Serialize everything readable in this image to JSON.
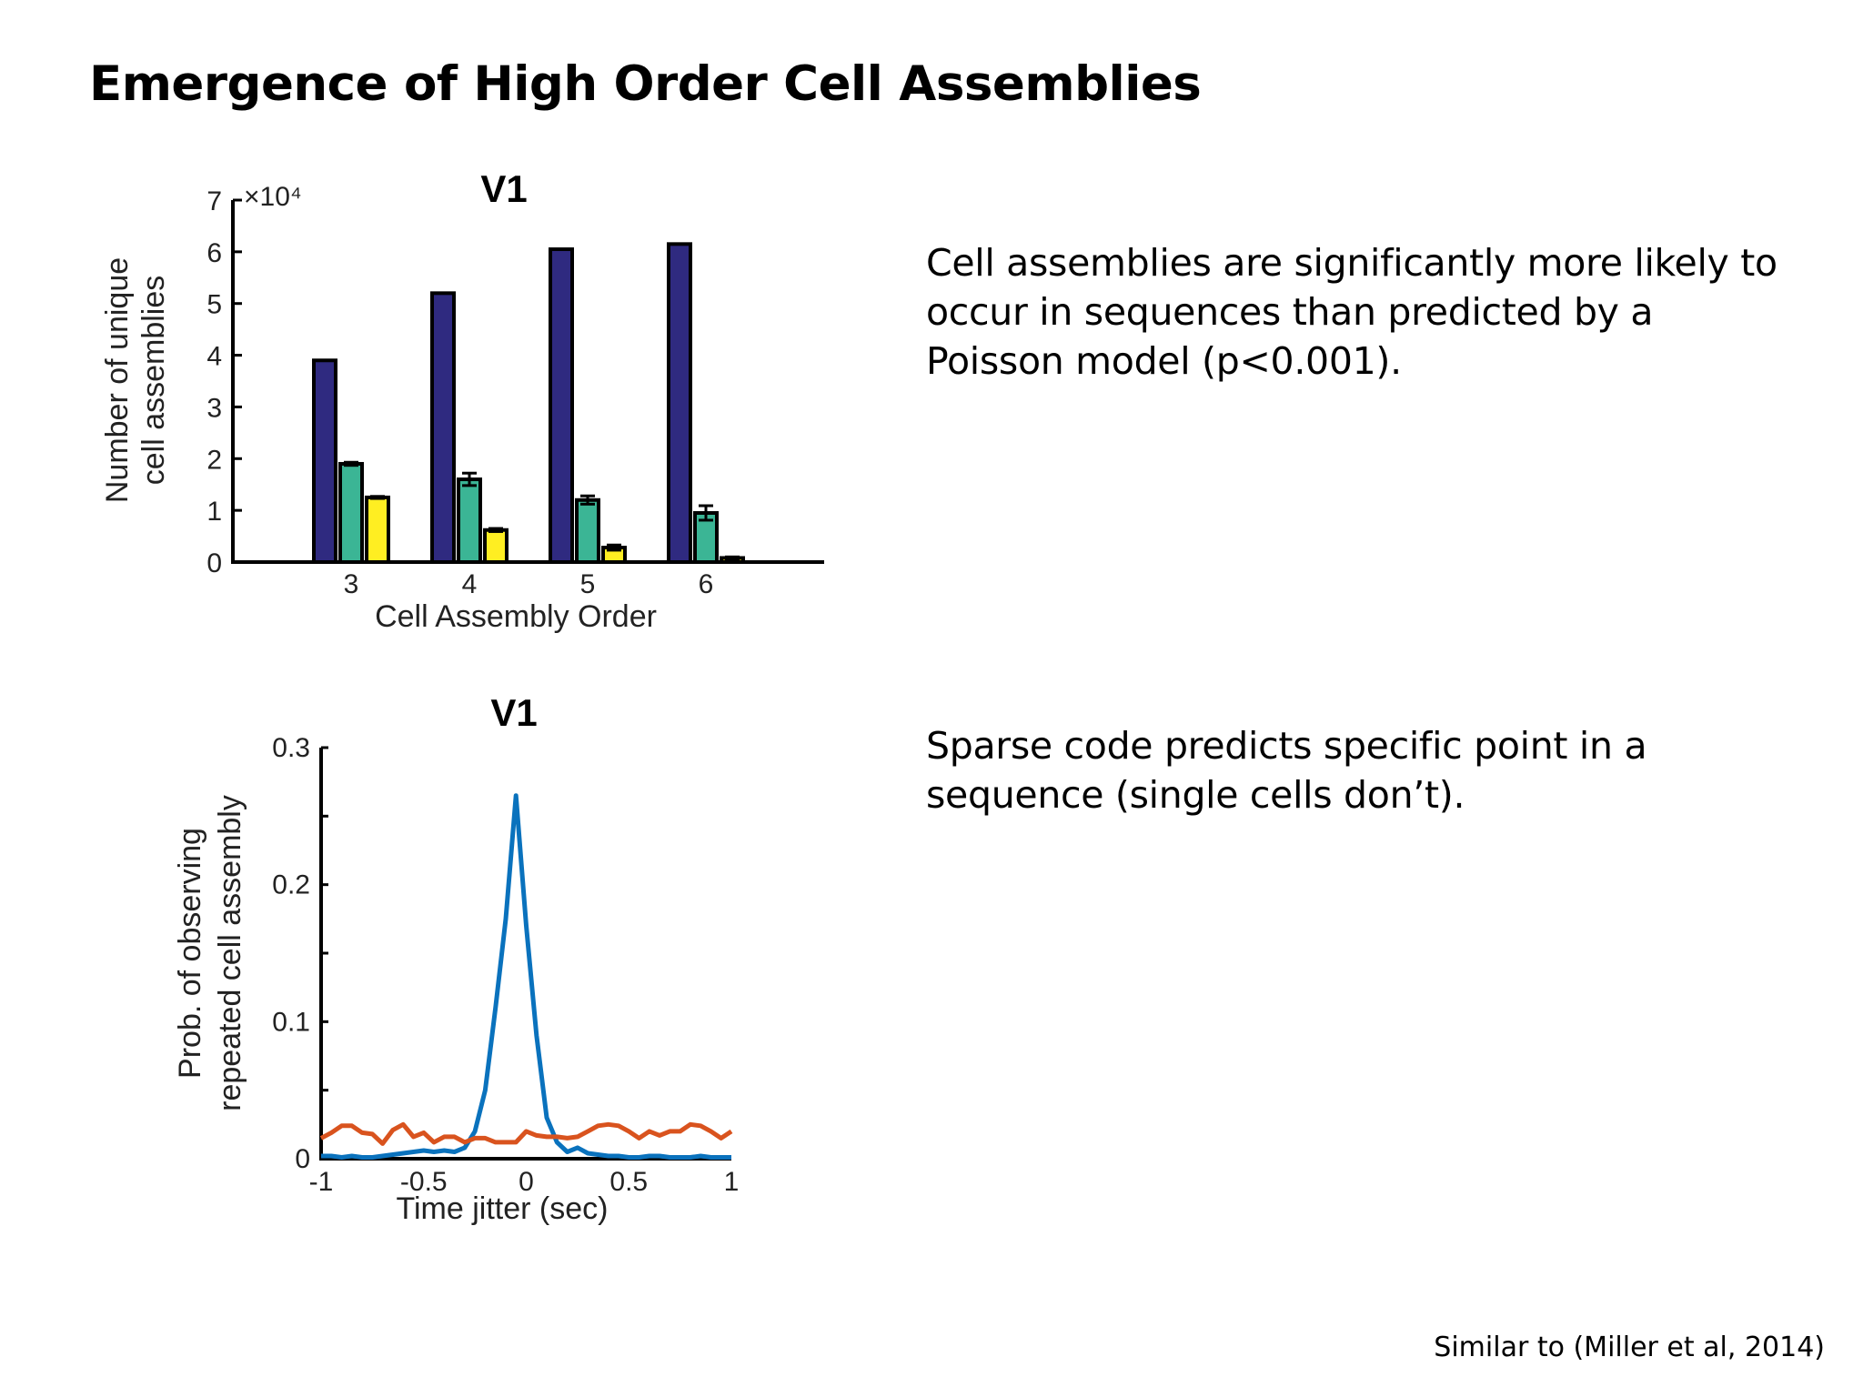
{
  "slide": {
    "title": "Emergence of High Order Cell Assemblies",
    "bullets": [
      [
        "Cell assemblies are significantly more likely to",
        "occur in sequences than predicted by a",
        "Poisson model (p<0.001)."
      ],
      [
        "Sparse code predicts specific point in a",
        "sequence (single cells don’t)."
      ]
    ],
    "citation": "Similar to (Miller et al, 2014)"
  },
  "chart_data": [
    {
      "type": "bar",
      "title": "V1",
      "xlabel": "Cell Assembly Order",
      "ylabel": [
        "Number of unique",
        "cell assemblies"
      ],
      "y_multiplier_label": "×10⁴",
      "categories": [
        "3",
        "4",
        "5",
        "6"
      ],
      "ylim": [
        0,
        7
      ],
      "yticks": [
        "0",
        "1",
        "2",
        "3",
        "4",
        "5",
        "6",
        "7"
      ],
      "series": [
        {
          "color": "#2f2a80",
          "values": [
            3.9,
            5.2,
            6.05,
            6.15
          ],
          "errors": [
            0,
            0,
            0,
            0
          ]
        },
        {
          "color": "#3bb595",
          "values": [
            1.9,
            1.6,
            1.2,
            0.95
          ],
          "errors": [
            0.03,
            0.12,
            0.08,
            0.14
          ]
        },
        {
          "color": "#ffee22",
          "values": [
            1.25,
            0.62,
            0.28,
            0.08
          ],
          "errors": [
            0.02,
            0.03,
            0.05,
            0.02
          ]
        }
      ]
    },
    {
      "type": "line",
      "title": "V1",
      "xlabel": "Time jitter (sec)",
      "ylabel": [
        "Prob. of observing",
        "repeated cell assembly"
      ],
      "xlim": [
        -1,
        1
      ],
      "ylim": [
        0,
        0.3
      ],
      "xticks": [
        "-1",
        "-0.5",
        "0",
        "0.5",
        "1"
      ],
      "yticks": [
        "0",
        "0.1",
        "0.2",
        "0.3"
      ],
      "series": [
        {
          "color": "#0a72bd",
          "x": [
            -1,
            -0.95,
            -0.9,
            -0.85,
            -0.8,
            -0.75,
            -0.7,
            -0.65,
            -0.6,
            -0.55,
            -0.5,
            -0.45,
            -0.4,
            -0.35,
            -0.3,
            -0.25,
            -0.2,
            -0.15,
            -0.1,
            -0.05,
            0,
            0.05,
            0.1,
            0.15,
            0.2,
            0.25,
            0.3,
            0.35,
            0.4,
            0.45,
            0.5,
            0.55,
            0.6,
            0.65,
            0.7,
            0.75,
            0.8,
            0.85,
            0.9,
            0.95,
            1
          ],
          "y": [
            0.002,
            0.002,
            0.001,
            0.002,
            0.001,
            0.001,
            0.002,
            0.003,
            0.004,
            0.005,
            0.006,
            0.005,
            0.006,
            0.005,
            0.008,
            0.02,
            0.05,
            0.11,
            0.175,
            0.265,
            0.17,
            0.09,
            0.03,
            0.012,
            0.005,
            0.008,
            0.004,
            0.003,
            0.002,
            0.002,
            0.001,
            0.001,
            0.002,
            0.002,
            0.001,
            0.001,
            0.001,
            0.002,
            0.001,
            0.001,
            0.001
          ],
          "note": "peak near 0"
        },
        {
          "color": "#d9531e",
          "x": [
            -1,
            -0.95,
            -0.9,
            -0.85,
            -0.8,
            -0.75,
            -0.7,
            -0.65,
            -0.6,
            -0.55,
            -0.5,
            -0.45,
            -0.4,
            -0.35,
            -0.3,
            -0.25,
            -0.2,
            -0.15,
            -0.1,
            -0.05,
            0,
            0.05,
            0.1,
            0.15,
            0.2,
            0.25,
            0.3,
            0.35,
            0.4,
            0.45,
            0.5,
            0.55,
            0.6,
            0.65,
            0.7,
            0.75,
            0.8,
            0.85,
            0.9,
            0.95,
            1
          ],
          "y": [
            0.015,
            0.019,
            0.024,
            0.024,
            0.019,
            0.018,
            0.011,
            0.021,
            0.025,
            0.016,
            0.019,
            0.012,
            0.016,
            0.016,
            0.012,
            0.015,
            0.015,
            0.012,
            0.012,
            0.012,
            0.02,
            0.017,
            0.016,
            0.016,
            0.015,
            0.016,
            0.02,
            0.024,
            0.025,
            0.024,
            0.02,
            0.015,
            0.02,
            0.017,
            0.02,
            0.02,
            0.025,
            0.024,
            0.02,
            0.015,
            0.02
          ]
        }
      ]
    }
  ]
}
